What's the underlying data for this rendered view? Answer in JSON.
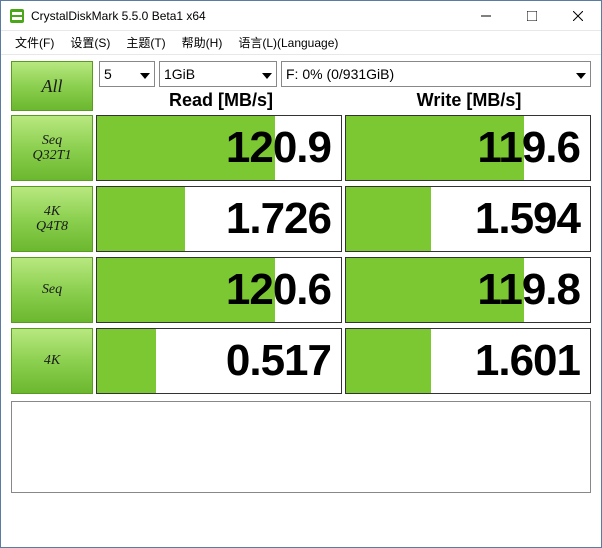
{
  "titlebar": {
    "title": "CrystalDiskMark 5.5.0 Beta1 x64"
  },
  "menubar": {
    "file": "文件(F)",
    "settings": "设置(S)",
    "theme": "主题(T)",
    "help": "帮助(H)",
    "language": "语言(L)(Language)"
  },
  "controls": {
    "all_label": "All",
    "runs": "5",
    "size": "1GiB",
    "drive": "F: 0% (0/931GiB)"
  },
  "headers": {
    "read": "Read [MB/s]",
    "write": "Write [MB/s]"
  },
  "rows": [
    {
      "label1": "Seq",
      "label2": "Q32T1",
      "read": "120.9",
      "read_pct": 73,
      "write": "119.6",
      "write_pct": 73
    },
    {
      "label1": "4K",
      "label2": "Q4T8",
      "read": "1.726",
      "read_pct": 36,
      "write": "1.594",
      "write_pct": 35
    },
    {
      "label1": "Seq",
      "label2": "",
      "read": "120.6",
      "read_pct": 73,
      "write": "119.8",
      "write_pct": 73
    },
    {
      "label1": "4K",
      "label2": "",
      "read": "0.517",
      "read_pct": 24,
      "write": "1.601",
      "write_pct": 35
    }
  ],
  "colors": {
    "button_gradient_top": "#b8e880",
    "button_gradient_mid": "#8cd050",
    "button_gradient_bottom": "#6bb82e",
    "button_border": "#5a9a20",
    "fill_color": "#7cc832",
    "cell_border": "#333333",
    "window_border": "#5a7ca0"
  }
}
